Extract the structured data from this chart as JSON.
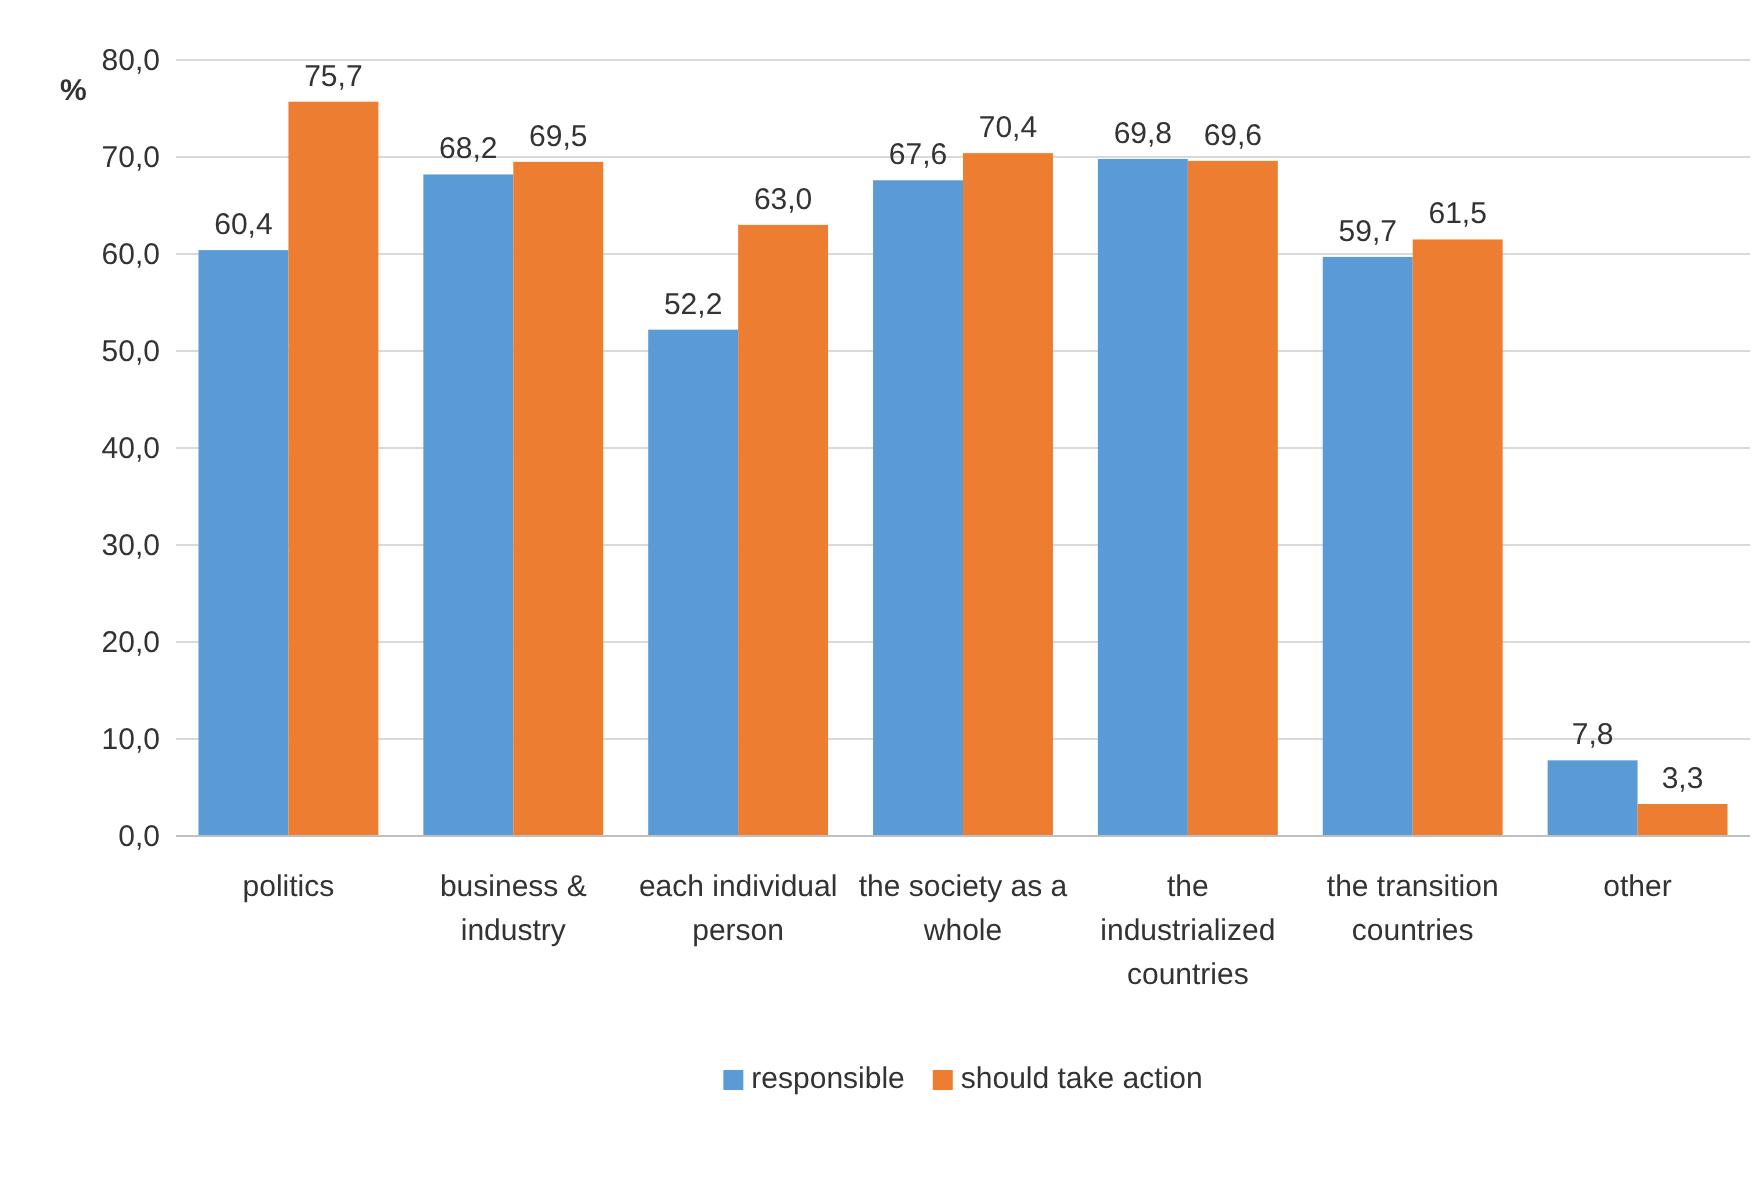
{
  "chart_data": {
    "type": "bar",
    "ylabel": "%",
    "categories": [
      "politics",
      "business & industry",
      "each individual person",
      "the society as a whole",
      "the industrialized countries",
      "the transition countries",
      "other"
    ],
    "series": [
      {
        "name": "responsible",
        "color": "#5b9bd5",
        "values": [
          60.4,
          68.2,
          52.2,
          67.6,
          69.8,
          59.7,
          7.8
        ],
        "value_labels": [
          "60,4",
          "68,2",
          "52,2",
          "67,6",
          "69,8",
          "59,7",
          "7,8"
        ]
      },
      {
        "name": "should take action",
        "color": "#ed7d31",
        "values": [
          75.7,
          69.5,
          63.0,
          70.4,
          69.6,
          61.5,
          3.3
        ],
        "value_labels": [
          "75,7",
          "69,5",
          "63,0",
          "70,4",
          "69,6",
          "61,5",
          "3,3"
        ]
      }
    ],
    "ylim": [
      0,
      80
    ],
    "yticks": [
      {
        "value": 0,
        "label": "0,0"
      },
      {
        "value": 10,
        "label": "10,0"
      },
      {
        "value": 20,
        "label": "20,0"
      },
      {
        "value": 30,
        "label": "30,0"
      },
      {
        "value": 40,
        "label": "40,0"
      },
      {
        "value": 50,
        "label": "50,0"
      },
      {
        "value": 60,
        "label": "60,0"
      },
      {
        "value": 70,
        "label": "70,0"
      },
      {
        "value": 80,
        "label": "80,0"
      }
    ],
    "grid": "y",
    "legend": "bottom"
  }
}
